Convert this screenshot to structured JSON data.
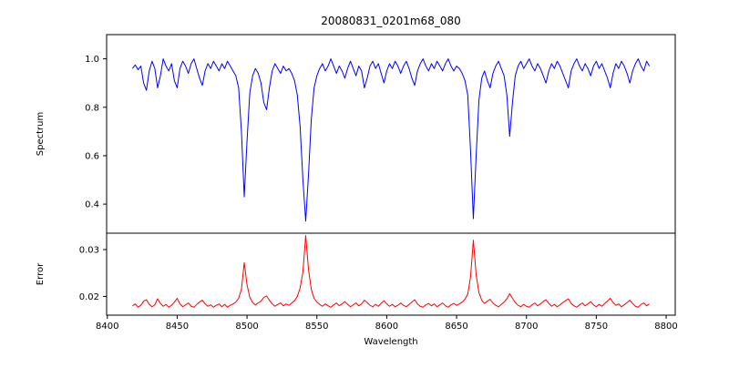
{
  "figure": {
    "title": "20080831_0201m68_080",
    "xlabel": "Wavelength",
    "top_ylabel": "Spectrum",
    "bottom_ylabel": "Error",
    "background_color": "#ffffff",
    "spectrum_line_color": "#0000ff",
    "error_line_color": "#ff0000"
  },
  "chart_data": [
    {
      "type": "line",
      "title": "20080831_0201m68_080",
      "ylabel": "Spectrum",
      "series_name": "spectrum",
      "series_color": "#0000ff",
      "grid": false,
      "legend": "none",
      "x_start": 8418,
      "x_step": 2,
      "xlim": [
        8399.5,
        8806.5
      ],
      "ylim": [
        0.28,
        1.1
      ],
      "y_ticks": [
        0.4,
        0.6,
        0.8,
        1.0
      ],
      "y_tick_labels": [
        "0.4",
        "0.6",
        "0.8",
        "1.0"
      ],
      "values": [
        0.96,
        0.975,
        0.955,
        0.97,
        0.9,
        0.87,
        0.95,
        0.99,
        0.96,
        0.88,
        0.93,
        1.0,
        0.97,
        0.95,
        0.98,
        0.91,
        0.88,
        0.96,
        0.99,
        0.97,
        0.94,
        0.98,
        1.0,
        0.96,
        0.92,
        0.89,
        0.95,
        0.98,
        0.96,
        0.99,
        0.97,
        0.95,
        0.98,
        0.96,
        0.99,
        0.97,
        0.95,
        0.93,
        0.88,
        0.7,
        0.43,
        0.66,
        0.86,
        0.93,
        0.96,
        0.94,
        0.9,
        0.82,
        0.79,
        0.88,
        0.95,
        0.98,
        0.96,
        0.94,
        0.97,
        0.95,
        0.96,
        0.94,
        0.91,
        0.85,
        0.72,
        0.5,
        0.33,
        0.52,
        0.75,
        0.88,
        0.93,
        0.96,
        0.98,
        0.95,
        0.97,
        1.0,
        0.97,
        0.94,
        0.97,
        0.95,
        0.92,
        0.96,
        0.99,
        0.96,
        0.93,
        0.97,
        0.95,
        0.88,
        0.92,
        0.97,
        0.99,
        0.96,
        0.98,
        0.94,
        0.9,
        0.95,
        0.98,
        0.96,
        0.99,
        0.97,
        0.94,
        0.97,
        0.99,
        0.96,
        0.92,
        0.89,
        0.95,
        0.98,
        1.0,
        0.97,
        0.95,
        0.98,
        0.96,
        0.99,
        0.97,
        0.95,
        0.98,
        1.0,
        0.97,
        0.95,
        0.97,
        0.96,
        0.94,
        0.91,
        0.85,
        0.62,
        0.34,
        0.6,
        0.83,
        0.92,
        0.95,
        0.91,
        0.88,
        0.94,
        0.97,
        0.99,
        0.96,
        0.93,
        0.85,
        0.68,
        0.82,
        0.93,
        0.97,
        0.99,
        0.96,
        0.98,
        1.0,
        0.97,
        0.95,
        0.98,
        0.96,
        0.93,
        0.9,
        0.95,
        0.98,
        0.96,
        0.99,
        0.97,
        0.94,
        0.91,
        0.88,
        0.95,
        0.98,
        1.0,
        0.97,
        0.95,
        0.98,
        0.96,
        0.93,
        0.97,
        0.99,
        0.96,
        0.98,
        0.95,
        0.92,
        0.88,
        0.94,
        0.98,
        0.96,
        0.99,
        0.97,
        0.94,
        0.9,
        0.95,
        0.98,
        1.0,
        0.97,
        0.95,
        0.99,
        0.97
      ]
    },
    {
      "type": "line",
      "ylabel": "Error",
      "xlabel": "Wavelength",
      "series_name": "error",
      "series_color": "#ff0000",
      "grid": false,
      "legend": "none",
      "x_start": 8418,
      "x_step": 2,
      "xlim": [
        8399.5,
        8806.5
      ],
      "ylim": [
        0.016,
        0.0335
      ],
      "x_ticks": [
        8400,
        8450,
        8500,
        8550,
        8600,
        8650,
        8700,
        8750,
        8800
      ],
      "x_tick_labels": [
        "8400",
        "8450",
        "8500",
        "8550",
        "8600",
        "8650",
        "8700",
        "8750",
        "8800"
      ],
      "y_ticks": [
        0.02,
        0.03
      ],
      "y_tick_labels": [
        "0.02",
        "0.03"
      ],
      "values": [
        0.018,
        0.0184,
        0.0177,
        0.0181,
        0.019,
        0.0193,
        0.0183,
        0.0178,
        0.0182,
        0.0195,
        0.0185,
        0.0179,
        0.0183,
        0.0177,
        0.0181,
        0.0188,
        0.0196,
        0.0184,
        0.0178,
        0.0182,
        0.0186,
        0.0179,
        0.0177,
        0.0183,
        0.0188,
        0.0192,
        0.0184,
        0.0179,
        0.0182,
        0.0177,
        0.0181,
        0.0184,
        0.0178,
        0.0183,
        0.0177,
        0.0181,
        0.0184,
        0.0188,
        0.0196,
        0.0215,
        0.0272,
        0.0225,
        0.0198,
        0.0187,
        0.0182,
        0.0186,
        0.019,
        0.0198,
        0.0201,
        0.0192,
        0.0184,
        0.0179,
        0.0183,
        0.0186,
        0.018,
        0.0184,
        0.0181,
        0.0186,
        0.0191,
        0.02,
        0.0218,
        0.0252,
        0.033,
        0.0258,
        0.0215,
        0.0196,
        0.0188,
        0.0183,
        0.0179,
        0.0184,
        0.018,
        0.0177,
        0.0182,
        0.0186,
        0.018,
        0.0184,
        0.0189,
        0.0183,
        0.0178,
        0.0182,
        0.0186,
        0.018,
        0.0184,
        0.0192,
        0.0187,
        0.0181,
        0.0178,
        0.0183,
        0.0179,
        0.0185,
        0.0191,
        0.0184,
        0.0179,
        0.0183,
        0.0178,
        0.0181,
        0.0186,
        0.0181,
        0.0178,
        0.0183,
        0.0188,
        0.0193,
        0.0184,
        0.0179,
        0.0177,
        0.0182,
        0.0185,
        0.018,
        0.0184,
        0.0178,
        0.0182,
        0.0186,
        0.018,
        0.0177,
        0.0182,
        0.0185,
        0.0181,
        0.0184,
        0.0188,
        0.0194,
        0.0205,
        0.0242,
        0.032,
        0.0246,
        0.0208,
        0.0192,
        0.0185,
        0.019,
        0.0194,
        0.0186,
        0.0181,
        0.0178,
        0.0183,
        0.0188,
        0.0195,
        0.0206,
        0.0196,
        0.0187,
        0.0181,
        0.0178,
        0.0183,
        0.0179,
        0.0177,
        0.0182,
        0.0186,
        0.018,
        0.0184,
        0.0189,
        0.0193,
        0.0185,
        0.0179,
        0.0183,
        0.0178,
        0.0182,
        0.0187,
        0.0191,
        0.0195,
        0.0185,
        0.018,
        0.0177,
        0.0182,
        0.0186,
        0.018,
        0.0184,
        0.0189,
        0.0182,
        0.0178,
        0.0183,
        0.0179,
        0.0185,
        0.019,
        0.0196,
        0.0187,
        0.0181,
        0.0184,
        0.0178,
        0.0182,
        0.0187,
        0.0192,
        0.0185,
        0.0179,
        0.0177,
        0.0183,
        0.0186,
        0.018,
        0.0184
      ]
    }
  ]
}
